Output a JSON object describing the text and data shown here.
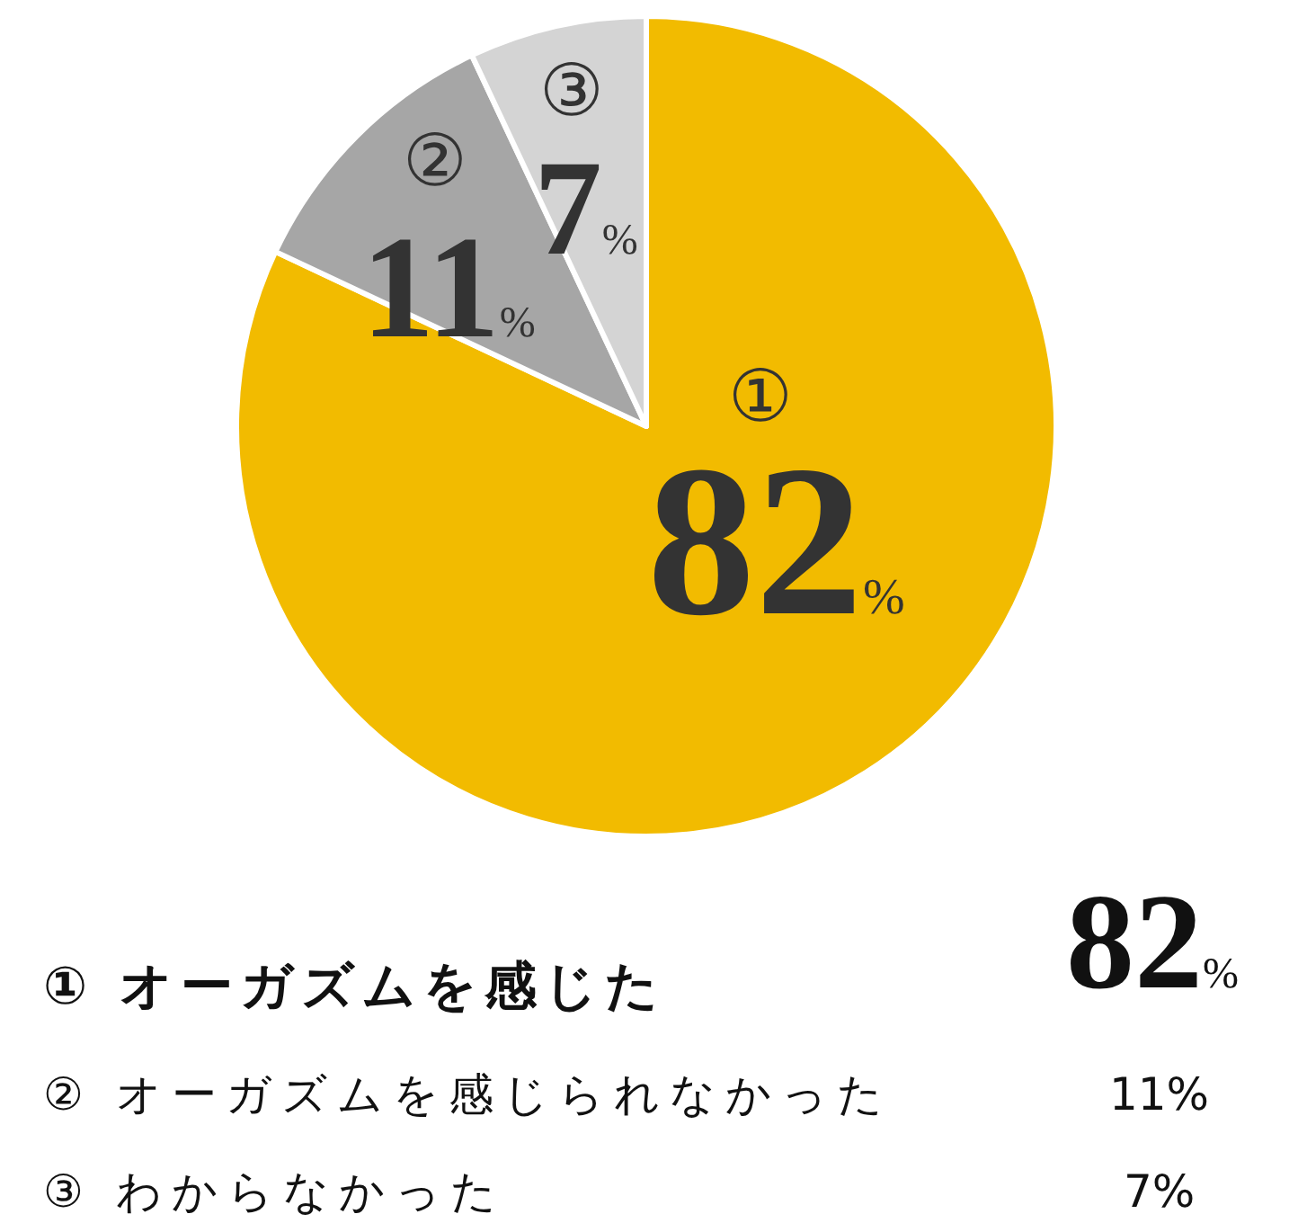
{
  "chart_data": {
    "type": "pie",
    "categories": [
      "①",
      "②",
      "③"
    ],
    "values": [
      82,
      11,
      7
    ],
    "colors": [
      "#f2bb00",
      "#a6a6a6",
      "#d4d4d4"
    ],
    "value_labels": [
      "82%",
      "11%",
      "7%"
    ],
    "annotations": [
      "① オーガズムを感じた",
      "② オーガズムを感じられなかった",
      "③ わからなかった"
    ]
  }
}
